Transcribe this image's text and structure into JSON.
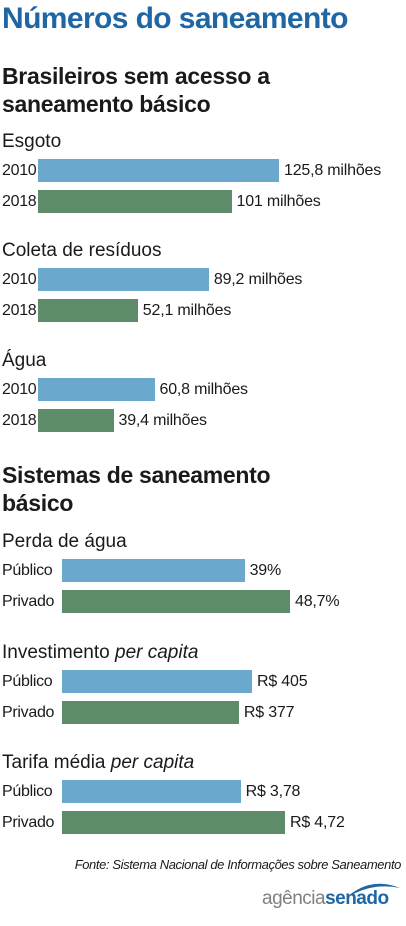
{
  "main_title": "Números do saneamento",
  "colors": {
    "title": "#1f66a5",
    "bar_blue": "#6aa9cd",
    "bar_green": "#5e8b69",
    "text": "#1a1a1a"
  },
  "source": "Fonte: Sistema Nacional de Informações sobre Saneamento",
  "logo": {
    "word1": "agência",
    "word2": "senado"
  },
  "chart_data": [
    {
      "type": "bar",
      "orientation": "horizontal",
      "title": "Brasileiros sem acesso a saneamento básico",
      "groups": [
        {
          "name": "Esgoto",
          "rows": [
            {
              "label": "2010",
              "value": 125.8,
              "display": "125,8 milhões",
              "color": "blue"
            },
            {
              "label": "2018",
              "value": 101,
              "display": "101 milhões",
              "color": "green"
            }
          ]
        },
        {
          "name": "Coleta de resíduos",
          "rows": [
            {
              "label": "2010",
              "value": 89.2,
              "display": "89,2 milhões",
              "color": "blue"
            },
            {
              "label": "2018",
              "value": 52.1,
              "display": "52,1 milhões",
              "color": "green"
            }
          ]
        },
        {
          "name": "Água",
          "rows": [
            {
              "label": "2010",
              "value": 60.8,
              "display": "60,8 milhões",
              "color": "blue"
            },
            {
              "label": "2018",
              "value": 39.4,
              "display": "39,4 milhões",
              "color": "green"
            }
          ]
        }
      ]
    },
    {
      "type": "bar",
      "orientation": "horizontal",
      "title": "Sistemas de saneamento básico",
      "groups": [
        {
          "name": "Perda de água",
          "italic_suffix": "",
          "rows": [
            {
              "label": "Público",
              "value": 39,
              "display": "39%",
              "color": "blue"
            },
            {
              "label": "Privado",
              "value": 48.7,
              "display": "48,7%",
              "color": "green"
            }
          ]
        },
        {
          "name": "Investimento ",
          "italic_suffix": "per capita",
          "rows": [
            {
              "label": "Público",
              "value": 405,
              "display": "R$ 405",
              "color": "blue"
            },
            {
              "label": "Privado",
              "value": 377,
              "display": "R$ 377",
              "color": "green"
            }
          ]
        },
        {
          "name": "Tarifa média ",
          "italic_suffix": "per capita",
          "rows": [
            {
              "label": "Público",
              "value": 3.78,
              "display": "R$ 3,78",
              "color": "blue"
            },
            {
              "label": "Privado",
              "value": 4.72,
              "display": "R$ 4,72",
              "color": "green"
            }
          ]
        }
      ]
    }
  ]
}
